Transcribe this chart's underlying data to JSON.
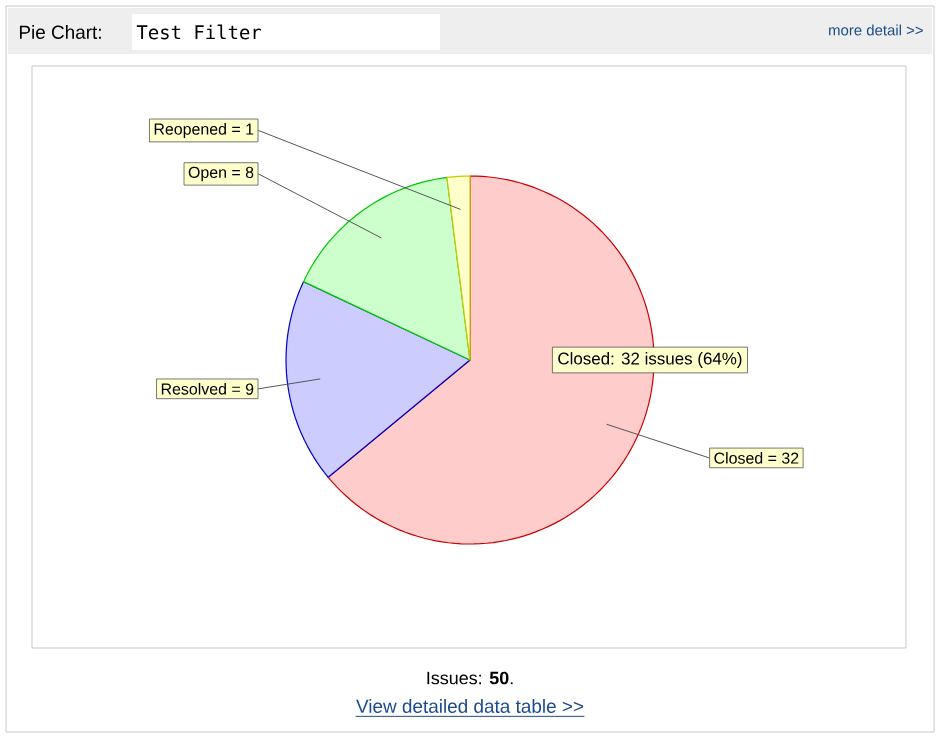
{
  "chart_data": {
    "type": "pie",
    "title": "Pie Chart:",
    "subtitle": "Test Filter",
    "categories": [
      "Closed",
      "Resolved",
      "Open",
      "Reopened"
    ],
    "values": [
      32,
      9,
      8,
      1
    ],
    "colors": [
      "#ffcccc",
      "#ccccff",
      "#ccffcc",
      "#ffffcc"
    ],
    "value_labels": [
      "= 32",
      "= 9",
      "= 8",
      "= 1"
    ],
    "annotations": [
      "more detail >>",
      "Closed: 32 issues (64%)",
      "Issues: **50**.",
      "View detailed data table >>"
    ]
  }
}
